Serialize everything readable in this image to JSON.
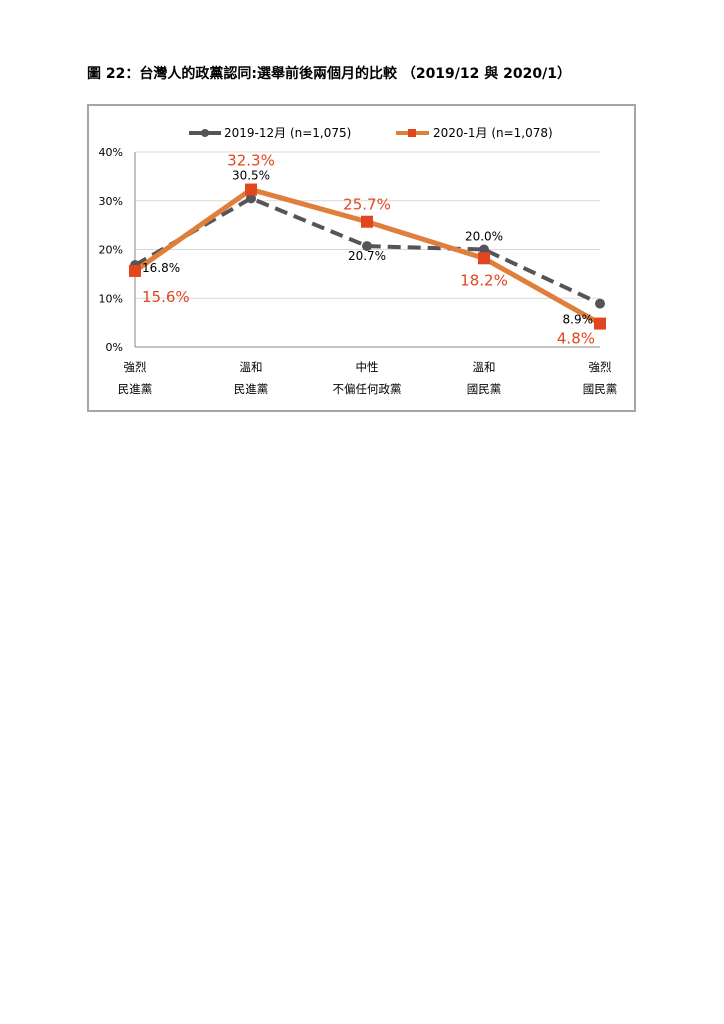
{
  "caption": "圖 22：台灣人的政黨認同:選舉前後兩個月的比較 （2019/12 與 2020/1）",
  "chart_data": {
    "type": "line",
    "categories": [
      [
        "強烈",
        "民進黨"
      ],
      [
        "溫和",
        "民進黨"
      ],
      [
        "中性",
        "不偏任何政黨"
      ],
      [
        "溫和",
        "國民黨"
      ],
      [
        "強烈",
        "國民黨"
      ]
    ],
    "ylim": [
      0,
      40
    ],
    "yticks": [
      0,
      10,
      20,
      30,
      40
    ],
    "ytick_labels": [
      "0%",
      "10%",
      "20%",
      "30%",
      "40%"
    ],
    "grid": true,
    "legend_position": "top",
    "series": [
      {
        "name": "2019-12月 (n=1,075)",
        "values": [
          16.8,
          30.5,
          20.7,
          20.0,
          8.9
        ],
        "labels": [
          "16.8%",
          "30.5%",
          "20.7%",
          "20.0%",
          "8.9%"
        ],
        "color": "#555559",
        "dashed": true,
        "marker": "circle"
      },
      {
        "name": "2020-1月 (n=1,078)",
        "values": [
          15.6,
          32.3,
          25.7,
          18.2,
          4.8
        ],
        "labels": [
          "15.6%",
          "32.3%",
          "25.7%",
          "18.2%",
          "4.8%"
        ],
        "color": "#e2461e",
        "line_color": "#e07e3c",
        "dashed": false,
        "marker": "square"
      }
    ]
  }
}
